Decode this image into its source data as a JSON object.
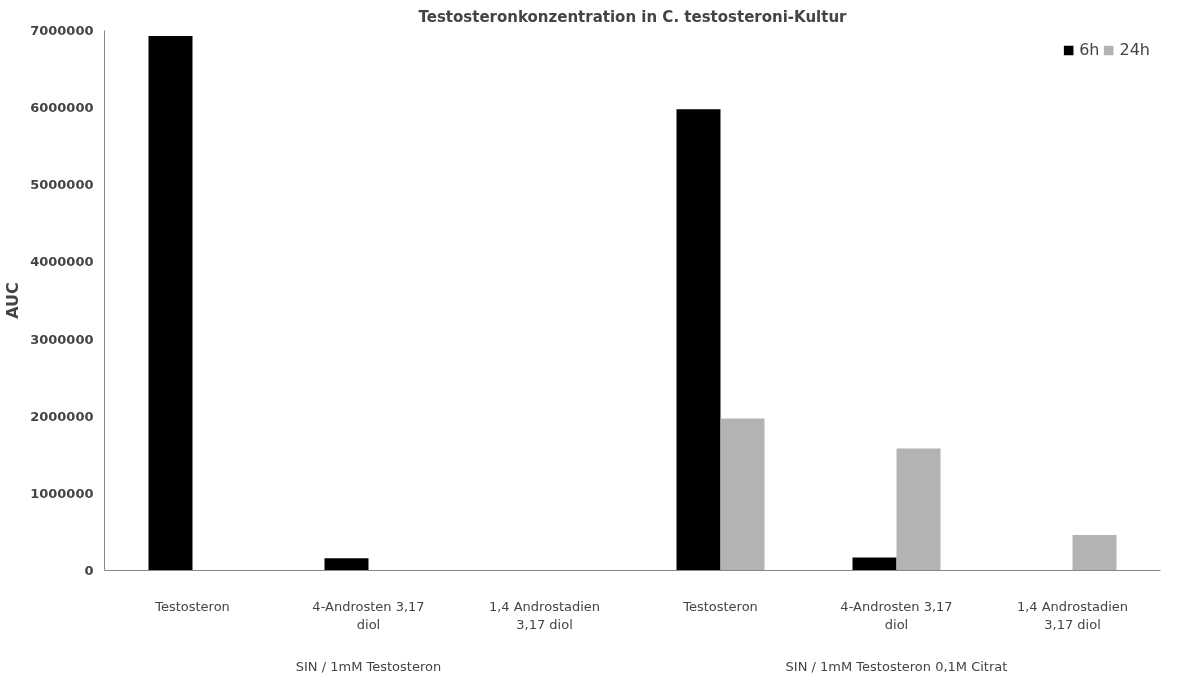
{
  "chart_data": {
    "type": "bar",
    "title": "Testosteronkonzentration in C. testosteroni-Kultur",
    "ylabel": "AUC",
    "categories": [
      "Testosteron",
      "4-Androsten 3,17 diol",
      "1,4 Androstadien 3,17 diol",
      "Testosteron",
      "4-Androsten 3,17 diol",
      "1,4 Androstadien 3,17 diol"
    ],
    "series": [
      {
        "name": "6h",
        "color": "#000000",
        "values": [
          6930000,
          160000,
          null,
          5980000,
          170000,
          null
        ]
      },
      {
        "name": "24h",
        "color": "#b3b3b3",
        "values": [
          null,
          null,
          null,
          1970000,
          1580000,
          460000
        ]
      }
    ],
    "annotations": [
      "SIN / 1mM Testosteron",
      "SIN / 1mM Testosteron 0,1M Citrat"
    ],
    "ylim": [
      0,
      7000000
    ],
    "yticks": [
      0,
      1000000,
      2000000,
      3000000,
      4000000,
      5000000,
      6000000,
      7000000
    ],
    "grid": false,
    "legend": "top right"
  }
}
